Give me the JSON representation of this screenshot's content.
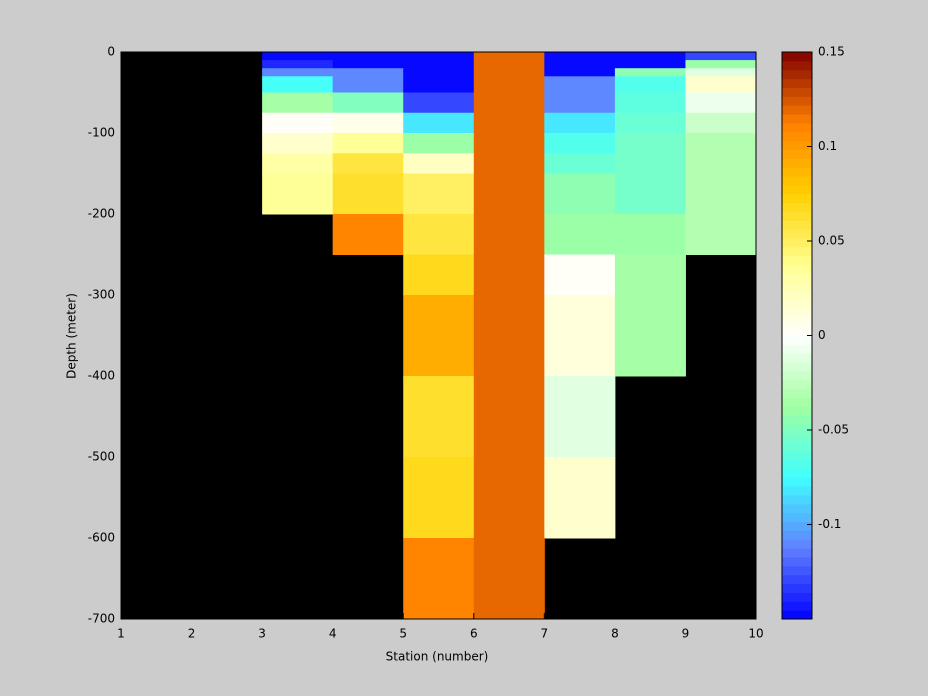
{
  "chart_data": {
    "type": "heatmap",
    "xlabel": "Station (number)",
    "ylabel": "Depth (meter)",
    "x_edges": [
      1,
      2,
      3,
      4,
      5,
      6,
      7,
      8,
      9,
      10
    ],
    "y_edges": [
      0,
      -10,
      -20,
      -30,
      -50,
      -75,
      -100,
      -125,
      -150,
      -200,
      -250,
      -300,
      -400,
      -500,
      -600,
      -700
    ],
    "values": [
      [
        null,
        null,
        -0.15,
        -0.15,
        -0.15,
        0.12,
        -0.15,
        -0.15,
        -0.13
      ],
      [
        null,
        null,
        -0.14,
        -0.15,
        -0.15,
        0.12,
        -0.15,
        -0.15,
        -0.04
      ],
      [
        null,
        null,
        -0.11,
        -0.11,
        -0.15,
        0.12,
        -0.15,
        -0.045,
        -0.01
      ],
      [
        null,
        null,
        -0.075,
        -0.11,
        -0.15,
        0.12,
        -0.11,
        -0.07,
        0.015
      ],
      [
        null,
        null,
        -0.035,
        -0.05,
        -0.13,
        0.12,
        -0.11,
        -0.065,
        -0.005
      ],
      [
        null,
        null,
        0,
        0.005,
        -0.08,
        0.12,
        -0.08,
        -0.06,
        -0.02
      ],
      [
        null,
        null,
        0.015,
        0.035,
        -0.04,
        0.12,
        -0.07,
        -0.055,
        -0.03
      ],
      [
        null,
        null,
        0.03,
        0.06,
        0.02,
        0.12,
        -0.06,
        -0.055,
        -0.03
      ],
      [
        null,
        null,
        0.035,
        0.065,
        0.05,
        0.12,
        -0.045,
        -0.055,
        -0.03
      ],
      [
        null,
        null,
        null,
        0.11,
        0.06,
        0.12,
        -0.04,
        -0.04,
        -0.03
      ],
      [
        null,
        null,
        null,
        null,
        0.07,
        0.12,
        0.002,
        -0.035,
        null
      ],
      [
        null,
        null,
        null,
        null,
        0.09,
        0.12,
        0.01,
        -0.035,
        null
      ],
      [
        null,
        null,
        null,
        null,
        0.065,
        0.12,
        -0.01,
        null,
        null
      ],
      [
        null,
        null,
        null,
        null,
        0.07,
        0.12,
        0.015,
        null,
        null
      ],
      [
        null,
        null,
        null,
        null,
        0.11,
        0.12,
        null,
        null,
        null
      ]
    ],
    "xlim": [
      1,
      10
    ],
    "ylim": [
      -700,
      0
    ],
    "xticks": [
      1,
      2,
      3,
      4,
      5,
      6,
      7,
      8,
      9,
      10
    ],
    "yticks": [
      -700,
      -600,
      -500,
      -400,
      -300,
      -200,
      -100,
      0
    ],
    "clim": [
      -0.15,
      0.15
    ],
    "cticks": [
      -0.1,
      -0.05,
      0,
      0.05,
      0.1,
      0.15
    ],
    "colormap": [
      "#0000ff",
      "#6080ff",
      "#40ffff",
      "#a0ffa0",
      "#ffffff",
      "#ffff90",
      "#ffd000",
      "#ff8000",
      "#800000"
    ],
    "colormap_levels": 64,
    "nan_color": "#000000"
  }
}
